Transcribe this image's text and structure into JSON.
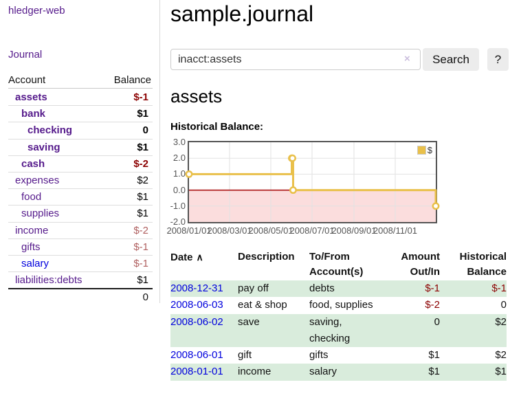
{
  "app": {
    "title": "hledger-web"
  },
  "sidebar": {
    "journal_link": "Journal",
    "accounts_table": {
      "headers": {
        "account": "Account",
        "balance": "Balance"
      },
      "rows": [
        {
          "account": "assets",
          "indent": 0,
          "bold": true,
          "link_color": "purple",
          "balance": "$-1",
          "balance_style": "neg-strong"
        },
        {
          "account": "bank",
          "indent": 1,
          "bold": true,
          "link_color": "purple",
          "balance": "$1",
          "balance_style": "pos"
        },
        {
          "account": "checking",
          "indent": 2,
          "bold": true,
          "link_color": "purple",
          "balance": "0",
          "balance_style": "pos"
        },
        {
          "account": "saving",
          "indent": 2,
          "bold": true,
          "link_color": "purple",
          "balance": "$1",
          "balance_style": "pos"
        },
        {
          "account": "cash",
          "indent": 1,
          "bold": true,
          "link_color": "purple",
          "balance": "$-2",
          "balance_style": "neg-strong"
        },
        {
          "account": "expenses",
          "indent": 0,
          "bold": false,
          "link_color": "purple",
          "balance": "$2",
          "balance_style": "pos"
        },
        {
          "account": "food",
          "indent": 1,
          "bold": false,
          "link_color": "purple",
          "balance": "$1",
          "balance_style": "pos"
        },
        {
          "account": "supplies",
          "indent": 1,
          "bold": false,
          "link_color": "purple",
          "balance": "$1",
          "balance_style": "pos"
        },
        {
          "account": "income",
          "indent": 0,
          "bold": false,
          "link_color": "purple",
          "balance": "$-2",
          "balance_style": "neg-soft"
        },
        {
          "account": "gifts",
          "indent": 1,
          "bold": false,
          "link_color": "purple",
          "balance": "$-1",
          "balance_style": "neg-soft"
        },
        {
          "account": "salary",
          "indent": 1,
          "bold": false,
          "link_color": "blue",
          "balance": "$-1",
          "balance_style": "neg-soft"
        },
        {
          "account": "liabilities:debts",
          "indent": 0,
          "bold": false,
          "link_color": "purple",
          "balance": "$1",
          "balance_style": "pos"
        }
      ],
      "total": "0"
    }
  },
  "header": {
    "title": "sample.journal"
  },
  "search": {
    "value": "inacct:assets",
    "clear_icon": "×",
    "button": "Search",
    "help_button": "?"
  },
  "account_page": {
    "title": "assets",
    "chart_caption": "Historical Balance:"
  },
  "chart_data": {
    "type": "line",
    "step": true,
    "title": "Historical Balance",
    "series": [
      {
        "name": "$",
        "color": "#e9c04a",
        "points": [
          [
            "2008-01-01",
            1
          ],
          [
            "2008-06-01",
            2
          ],
          [
            "2008-06-02",
            2
          ],
          [
            "2008-06-03",
            0
          ],
          [
            "2008-12-31",
            -1
          ]
        ]
      }
    ],
    "x_range": [
      "2008-01-01",
      "2008-12-31"
    ],
    "x_ticks": [
      "2008/01/01",
      "2008/03/01",
      "2008/05/01",
      "2008/07/01",
      "2008/09/01",
      "2008/11/01"
    ],
    "y_ticks": [
      3.0,
      2.0,
      1.0,
      0.0,
      -1.0,
      -2.0
    ],
    "ylim": [
      -2,
      3
    ],
    "grid": true,
    "legend": {
      "label": "$",
      "position": "top-right"
    },
    "negative_region_color": "#fbdddd",
    "zero_line_color": "#a30000",
    "point_style": "hollow-circle"
  },
  "register_table": {
    "headers": {
      "date": "Date",
      "sort_icon": "∧",
      "description": "Description",
      "accounts": "To/From Account(s)",
      "amount": "Amount Out/In",
      "balance": "Historical Balance"
    },
    "rows": [
      {
        "date": "2008-12-31",
        "description": "pay off",
        "accounts": "debts",
        "amount": "$-1",
        "amount_neg": true,
        "balance": "$-1",
        "balance_neg": true,
        "highlight": true
      },
      {
        "date": "2008-06-03",
        "description": "eat & shop",
        "accounts": "food, supplies",
        "amount": "$-2",
        "amount_neg": true,
        "balance": "0",
        "balance_neg": false,
        "highlight": false
      },
      {
        "date": "2008-06-02",
        "description": "save",
        "accounts": "saving, checking",
        "amount": "0",
        "amount_neg": false,
        "balance": "$2",
        "balance_neg": false,
        "highlight": true
      },
      {
        "date": "2008-06-01",
        "description": "gift",
        "accounts": "gifts",
        "amount": "$1",
        "amount_neg": false,
        "balance": "$2",
        "balance_neg": false,
        "highlight": false
      },
      {
        "date": "2008-01-01",
        "description": "income",
        "accounts": "salary",
        "amount": "$1",
        "amount_neg": false,
        "balance": "$1",
        "balance_neg": false,
        "highlight": true
      }
    ]
  },
  "colors": {
    "link_purple": "#551a8b",
    "link_blue": "#0000dd",
    "negative_strong": "#8b0000",
    "negative_soft": "#b06060",
    "row_highlight_green": "#d9ecdc",
    "chart_gold": "#e9c04a",
    "chart_negative_region": "#fbdddd",
    "chart_zero_line": "#a30000",
    "chart_border": "#545454"
  }
}
